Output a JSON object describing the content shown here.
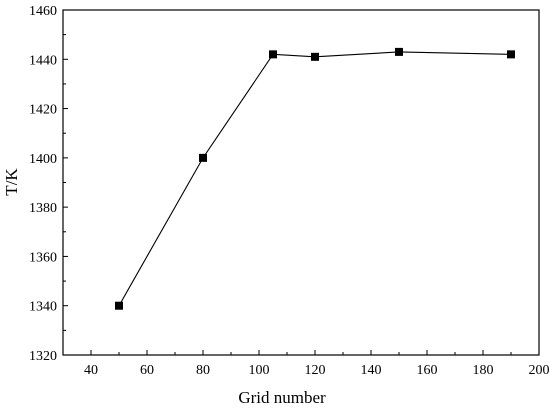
{
  "chart_data": {
    "type": "line",
    "xlabel": "Grid number",
    "ylabel": "T/K",
    "xlim": [
      30,
      200
    ],
    "ylim": [
      1320,
      1460
    ],
    "x_ticks": [
      40,
      60,
      80,
      100,
      120,
      140,
      160,
      180,
      200
    ],
    "y_ticks": [
      1320,
      1340,
      1360,
      1380,
      1400,
      1420,
      1440,
      1460
    ],
    "grid": false,
    "legend": "none",
    "marker": "square",
    "color": "#000000",
    "series": [
      {
        "x": [
          50,
          80,
          105,
          120,
          150,
          190
        ],
        "y": [
          1340,
          1400,
          1442,
          1441,
          1443,
          1442
        ]
      }
    ]
  }
}
